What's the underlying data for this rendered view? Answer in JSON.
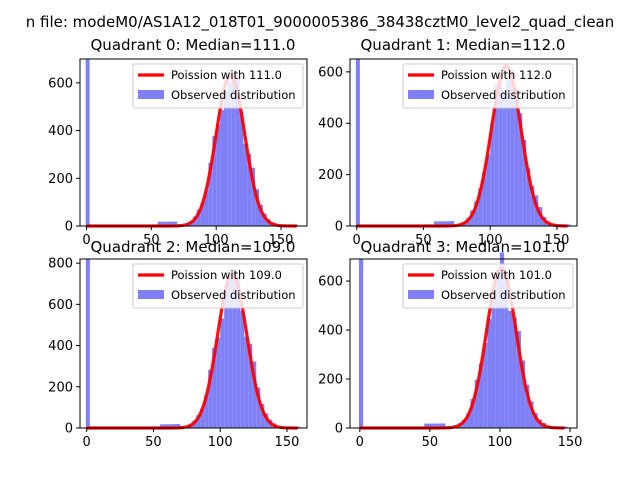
{
  "suptitle": "n file: modeM0/AS1A12_018T01_9000005386_38438cztM0_level2_quad_clean",
  "colors": {
    "poisson": "#ff0000",
    "observed": "#7f7ff6",
    "axis": "#000000"
  },
  "chart_data": [
    {
      "type": "bar",
      "title": "Quadrant 0: Median=111.0",
      "xticks": [
        0,
        50,
        100,
        150
      ],
      "yticks": [
        0,
        200,
        400,
        600
      ],
      "xlim": [
        -5,
        170
      ],
      "ylim": [
        0,
        700
      ],
      "zero_bin": 700,
      "lambda": 111,
      "hist_peak": 620,
      "hist_end": 162,
      "grid": false,
      "legend_position": "upper right",
      "series": [
        {
          "name": "Poission with 111.0",
          "kind": "line",
          "color": "#ff0000"
        },
        {
          "name": "Observed distribution",
          "kind": "bar",
          "color": "#7f7ff6"
        }
      ]
    },
    {
      "type": "bar",
      "title": "Quadrant 1: Median=112.0",
      "xticks": [
        0,
        50,
        100,
        150
      ],
      "yticks": [
        0,
        200,
        400,
        600
      ],
      "xlim": [
        -5,
        165
      ],
      "ylim": [
        0,
        650
      ],
      "zero_bin": 650,
      "lambda": 112,
      "hist_peak": 610,
      "hist_end": 158,
      "grid": false,
      "legend_position": "upper right",
      "series": [
        {
          "name": "Poission with 112.0",
          "kind": "line",
          "color": "#ff0000"
        },
        {
          "name": "Observed distribution",
          "kind": "bar",
          "color": "#7f7ff6"
        }
      ]
    },
    {
      "type": "bar",
      "title": "Quadrant 2: Median=109.0",
      "xticks": [
        0,
        50,
        100,
        150
      ],
      "yticks": [
        0,
        200,
        400,
        600,
        800
      ],
      "xlim": [
        -5,
        165
      ],
      "ylim": [
        0,
        820
      ],
      "zero_bin": 820,
      "lambda": 109,
      "hist_peak": 730,
      "hist_end": 158,
      "grid": false,
      "legend_position": "upper right",
      "series": [
        {
          "name": "Poission with 109.0",
          "kind": "line",
          "color": "#ff0000"
        },
        {
          "name": "Observed distribution",
          "kind": "bar",
          "color": "#7f7ff6"
        }
      ]
    },
    {
      "type": "bar",
      "title": "Quadrant 3: Median=101.0",
      "xticks": [
        0,
        50,
        100,
        150
      ],
      "yticks": [
        0,
        200,
        400,
        600
      ],
      "xlim": [
        -7,
        155
      ],
      "ylim": [
        0,
        690
      ],
      "zero_bin": 690,
      "lambda": 101,
      "hist_peak": 640,
      "hist_end": 146,
      "grid": false,
      "legend_position": "upper right",
      "series": [
        {
          "name": "Poission with 101.0",
          "kind": "line",
          "color": "#ff0000"
        },
        {
          "name": "Observed distribution",
          "kind": "bar",
          "color": "#7f7ff6"
        }
      ]
    }
  ]
}
